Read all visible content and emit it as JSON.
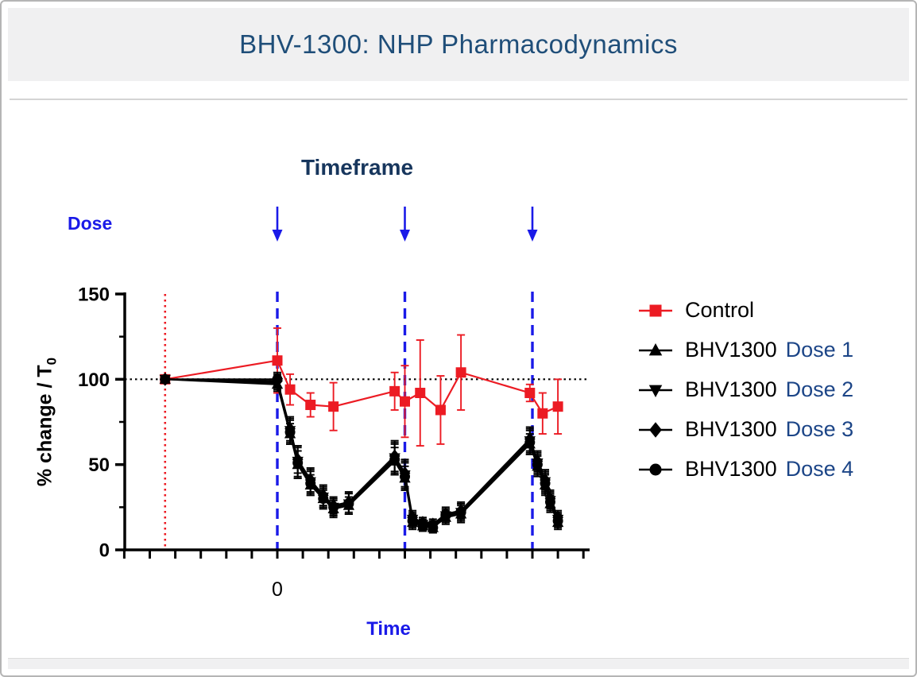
{
  "header": {
    "title": "BHV-1300: NHP Pharmacodynamics"
  },
  "chart": {
    "title": "Timeframe",
    "dose_label": "Dose",
    "x_label": "Time",
    "x_zero_label": "0",
    "y_label_main": "% change / T",
    "y_label_sub": "0"
  },
  "colors": {
    "accent_blue": "#1a1ae8",
    "legend_blue": "#1c4587",
    "control_red": "#ec1b23",
    "series_black": "#000000",
    "title_navy": "#1f4e79",
    "chart_title_navy": "#17365d",
    "header_gray": "#f0f0f1"
  },
  "chart_data": {
    "type": "line",
    "title": "Timeframe",
    "xlabel": "Time",
    "ylabel": "% change / T0",
    "ylim": [
      0,
      150
    ],
    "yticks": [
      0,
      50,
      100,
      150
    ],
    "y_minor_ticks": [
      25,
      75,
      125
    ],
    "xlim": [
      -6,
      12.3
    ],
    "x_tick_interval": 1,
    "x_tick_labels": [
      {
        "x": 0,
        "label": "0"
      }
    ],
    "grid": false,
    "legend_position": "right",
    "reference_lines": {
      "horizontal_dotted_y": 100,
      "baseline_vertical_dotted_x": -4.4,
      "dose_vertical_dashed_x": [
        0,
        5,
        10
      ]
    },
    "dose_arrow_x": [
      0,
      5,
      10
    ],
    "series": [
      {
        "name": "Control",
        "marker": "square",
        "color": "#ec1b23",
        "label_black": "Control",
        "label_blue": "",
        "points": [
          [
            -4.4,
            100,
            2
          ],
          [
            0,
            111,
            19
          ],
          [
            0.5,
            94,
            9
          ],
          [
            1.3,
            85,
            7
          ],
          [
            2.2,
            84,
            14
          ],
          [
            4.6,
            93,
            11
          ],
          [
            5.0,
            87,
            21
          ],
          [
            5.6,
            92,
            31
          ],
          [
            6.4,
            82,
            20
          ],
          [
            7.2,
            104,
            22
          ],
          [
            9.9,
            92,
            5
          ],
          [
            10.4,
            80,
            12
          ],
          [
            11.0,
            84,
            16
          ]
        ]
      },
      {
        "name": "BHV1300 Dose 1",
        "marker": "triangle-up",
        "color": "#000000",
        "label_black": "BHV1300",
        "label_blue": "Dose 1",
        "points": [
          [
            -4.4,
            100,
            2
          ],
          [
            0,
            97,
            4
          ],
          [
            0.5,
            68,
            6
          ],
          [
            0.8,
            50,
            8
          ],
          [
            1.3,
            38,
            6
          ],
          [
            1.8,
            30,
            5
          ],
          [
            2.2,
            24,
            5
          ],
          [
            2.8,
            26,
            5
          ],
          [
            4.6,
            52,
            8
          ],
          [
            5.0,
            42,
            7
          ],
          [
            5.3,
            16,
            4
          ],
          [
            5.7,
            14,
            3
          ],
          [
            6.1,
            13,
            3
          ],
          [
            6.6,
            19,
            4
          ],
          [
            7.2,
            21,
            5
          ],
          [
            9.9,
            62,
            6
          ],
          [
            10.2,
            49,
            6
          ],
          [
            10.5,
            38,
            6
          ],
          [
            10.7,
            27,
            5
          ],
          [
            11.0,
            16,
            4
          ]
        ]
      },
      {
        "name": "BHV1300 Dose 2",
        "marker": "triangle-down",
        "color": "#000000",
        "label_black": "BHV1300",
        "label_blue": "Dose 2",
        "points": [
          [
            -4.4,
            100,
            2
          ],
          [
            0,
            98,
            4
          ],
          [
            0.5,
            70,
            7
          ],
          [
            0.8,
            52,
            9
          ],
          [
            1.3,
            40,
            7
          ],
          [
            1.8,
            31,
            6
          ],
          [
            2.2,
            25,
            5
          ],
          [
            2.8,
            27,
            6
          ],
          [
            4.6,
            54,
            9
          ],
          [
            5.0,
            44,
            8
          ],
          [
            5.3,
            18,
            4
          ],
          [
            5.7,
            15,
            3
          ],
          [
            6.1,
            14,
            3
          ],
          [
            6.6,
            20,
            4
          ],
          [
            7.2,
            22,
            5
          ],
          [
            9.9,
            64,
            7
          ],
          [
            10.2,
            51,
            6
          ],
          [
            10.5,
            40,
            6
          ],
          [
            10.7,
            29,
            5
          ],
          [
            11.0,
            18,
            4
          ]
        ]
      },
      {
        "name": "BHV1300 Dose 3",
        "marker": "diamond",
        "color": "#000000",
        "label_black": "BHV1300",
        "label_blue": "Dose 3",
        "points": [
          [
            -4.4,
            100,
            2
          ],
          [
            0,
            99,
            4
          ],
          [
            0.5,
            71,
            7
          ],
          [
            0.8,
            53,
            8
          ],
          [
            1.3,
            41,
            7
          ],
          [
            1.8,
            32,
            6
          ],
          [
            2.2,
            26,
            5
          ],
          [
            2.8,
            28,
            6
          ],
          [
            4.6,
            55,
            9
          ],
          [
            5.0,
            45,
            8
          ],
          [
            5.3,
            19,
            4
          ],
          [
            5.7,
            16,
            3
          ],
          [
            6.1,
            15,
            3
          ],
          [
            6.6,
            21,
            4
          ],
          [
            7.2,
            23,
            5
          ],
          [
            9.9,
            65,
            7
          ],
          [
            10.2,
            52,
            6
          ],
          [
            10.5,
            41,
            6
          ],
          [
            10.7,
            30,
            5
          ],
          [
            11.0,
            19,
            4
          ]
        ]
      },
      {
        "name": "BHV1300 Dose 4",
        "marker": "circle",
        "color": "#000000",
        "label_black": "BHV1300",
        "label_blue": "Dose 4",
        "points": [
          [
            -4.4,
            100,
            2
          ],
          [
            0,
            100,
            4
          ],
          [
            0.5,
            69,
            7
          ],
          [
            0.8,
            51,
            9
          ],
          [
            1.3,
            39,
            7
          ],
          [
            1.8,
            30,
            6
          ],
          [
            2.2,
            25,
            5
          ],
          [
            2.8,
            27,
            6
          ],
          [
            4.6,
            53,
            9
          ],
          [
            5.0,
            43,
            8
          ],
          [
            5.3,
            17,
            4
          ],
          [
            5.7,
            14,
            3
          ],
          [
            6.1,
            13,
            3
          ],
          [
            6.6,
            20,
            4
          ],
          [
            7.2,
            22,
            5
          ],
          [
            9.9,
            63,
            7
          ],
          [
            10.2,
            50,
            6
          ],
          [
            10.5,
            39,
            6
          ],
          [
            10.7,
            28,
            5
          ],
          [
            11.0,
            17,
            4
          ]
        ]
      }
    ]
  }
}
